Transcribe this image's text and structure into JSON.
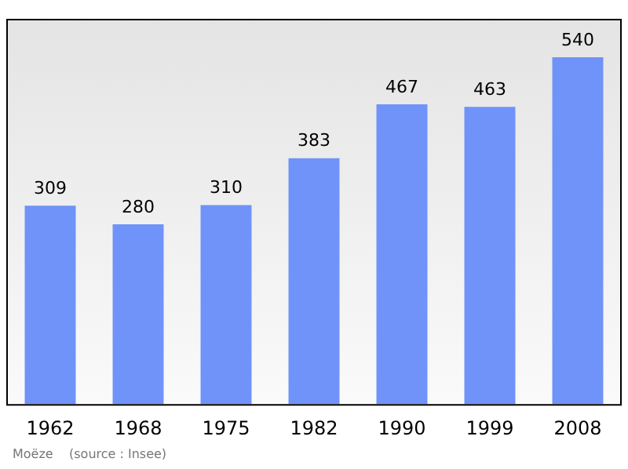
{
  "chart_data": {
    "type": "bar",
    "categories": [
      "1962",
      "1968",
      "1975",
      "1982",
      "1990",
      "1999",
      "2008"
    ],
    "values": [
      309,
      280,
      310,
      383,
      467,
      463,
      540
    ],
    "color": "#6f93f8",
    "data_labels": true,
    "grid": false,
    "legend": false,
    "tick_labels": "x",
    "annotations": [
      "Moëze    (source : Insee)"
    ]
  }
}
